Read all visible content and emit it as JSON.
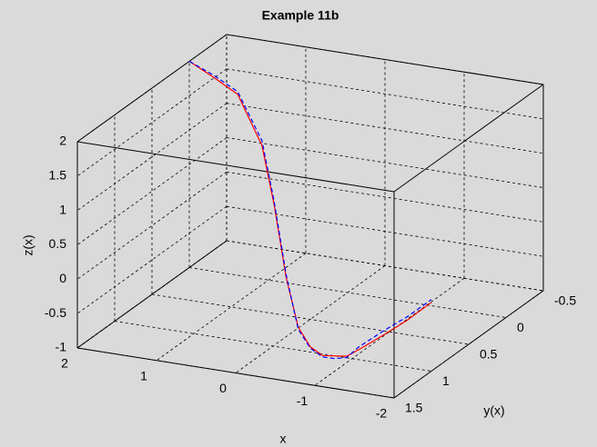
{
  "chart_data": {
    "type": "line3d",
    "title": "Example 11b",
    "xlabel": "x",
    "ylabel": "y(x)",
    "zlabel": "z(x)",
    "x": [
      2,
      1.6,
      1.2,
      0.8,
      0.6,
      0.4,
      0.2,
      0,
      -0.2,
      -0.4,
      -0.6,
      -0.8,
      -1.2,
      -1.6,
      -2
    ],
    "series": [
      {
        "color": "#ff0000",
        "dash": false,
        "y": [
          0,
          0.1,
          0.2,
          0.3,
          0.35,
          0.4,
          0.45,
          0.5,
          0.55,
          0.6,
          0.65,
          0.7,
          0.8,
          0.9,
          1.0
        ],
        "z": [
          2,
          1.92,
          1.82,
          1.23,
          0.45,
          -0.54,
          -1.19,
          -1.4,
          -1.45,
          -1.38,
          -1.31,
          -1.14,
          -0.78,
          -0.41,
          0
        ]
      },
      {
        "color": "#0000ff",
        "dash": true,
        "y": [
          0,
          0.1,
          0.2,
          0.3,
          0.35,
          0.4,
          0.45,
          0.5,
          0.55,
          0.6,
          0.65,
          0.7,
          0.8,
          0.9,
          1.0
        ],
        "z": [
          2,
          1.95,
          1.86,
          1.3,
          0.5,
          -0.5,
          -1.22,
          -1.42,
          -1.47,
          -1.42,
          -1.33,
          -1.1,
          -0.72,
          -0.36,
          0.04
        ]
      }
    ],
    "xlim": [
      -2,
      2
    ],
    "ylim": [
      -0.5,
      1.5
    ],
    "zlim": [
      -1,
      2
    ],
    "xticks": [
      -2,
      -1,
      0,
      1,
      2
    ],
    "yticks": [
      -0.5,
      0,
      0.5,
      1,
      1.5
    ],
    "zticks": [
      -1,
      -0.5,
      0,
      0.5,
      1,
      1.5,
      2
    ],
    "grid": true
  }
}
